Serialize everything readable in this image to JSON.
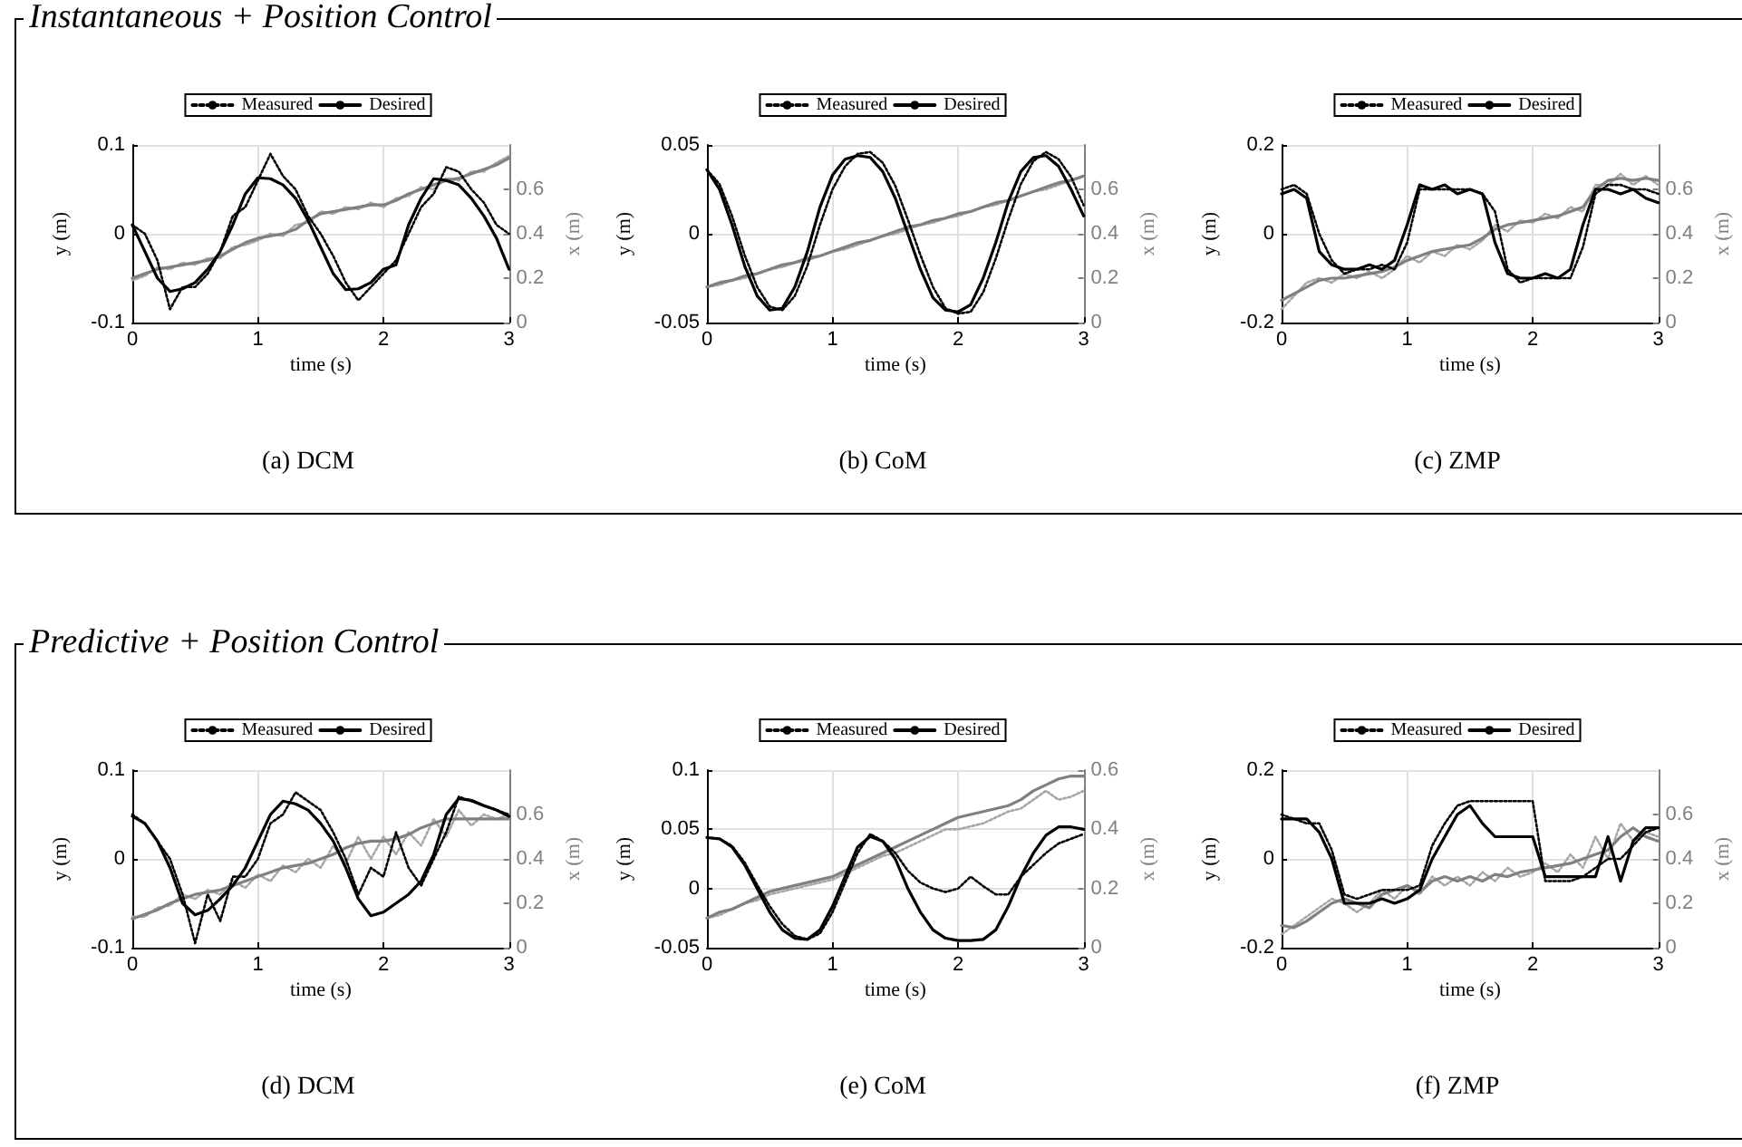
{
  "chart_data": [
    {
      "type": "line",
      "title": "(a) DCM",
      "annotations": [
        "Instantaneous + Position Control"
      ],
      "xlabel": "time (s)",
      "ylabel": "y (m)",
      "y2label": "x (m)",
      "xlim": [
        0,
        3
      ],
      "xticks": [
        0,
        1,
        2,
        3
      ],
      "ylim": [
        -0.1,
        0.1
      ],
      "yticks": [
        -0.1,
        0,
        0.1
      ],
      "y2lim": [
        0,
        0.8
      ],
      "y2ticks": [
        0,
        0.2,
        0.4,
        0.6
      ],
      "grid": true,
      "legend": "top",
      "marker": "none",
      "x": [
        0,
        0.1,
        0.2,
        0.3,
        0.4,
        0.5,
        0.6,
        0.7,
        0.8,
        0.9,
        1,
        1.1,
        1.2,
        1.3,
        1.4,
        1.5,
        1.6,
        1.7,
        1.8,
        1.9,
        2,
        2.1,
        2.2,
        2.3,
        2.4,
        2.5,
        2.6,
        2.7,
        2.8,
        2.9,
        3
      ],
      "series": [
        {
          "axis": "y2",
          "color": "#a6a6a6",
          "line_style": "dotted",
          "values": [
            0.19,
            0.21,
            0.25,
            0.24,
            0.27,
            0.26,
            0.29,
            0.29,
            0.34,
            0.35,
            0.37,
            0.4,
            0.39,
            0.44,
            0.45,
            0.5,
            0.49,
            0.52,
            0.51,
            0.54,
            0.52,
            0.56,
            0.57,
            0.61,
            0.6,
            0.65,
            0.64,
            0.68,
            0.68,
            0.72,
            0.75
          ]
        },
        {
          "axis": "y2",
          "color": "#808080",
          "line_style": "solid",
          "values": [
            0.2,
            0.22,
            0.24,
            0.25,
            0.26,
            0.27,
            0.28,
            0.3,
            0.33,
            0.36,
            0.38,
            0.39,
            0.4,
            0.42,
            0.46,
            0.49,
            0.5,
            0.51,
            0.52,
            0.53,
            0.53,
            0.55,
            0.58,
            0.6,
            0.62,
            0.64,
            0.65,
            0.67,
            0.69,
            0.71,
            0.74
          ]
        },
        {
          "name": "Measured",
          "color": "#000000",
          "line_style": "dotted",
          "values": [
            0.01,
            0.0,
            -0.03,
            -0.085,
            -0.06,
            -0.06,
            -0.045,
            -0.02,
            0.02,
            0.03,
            0.06,
            0.09,
            0.065,
            0.05,
            0.02,
            0.0,
            -0.025,
            -0.055,
            -0.075,
            -0.06,
            -0.045,
            -0.03,
            0.0,
            0.03,
            0.045,
            0.075,
            0.07,
            0.05,
            0.035,
            0.01,
            0.0
          ]
        },
        {
          "name": "Desired",
          "color": "#000000",
          "line_style": "solid",
          "values": [
            0.01,
            -0.02,
            -0.05,
            -0.065,
            -0.062,
            -0.055,
            -0.04,
            -0.02,
            0.01,
            0.045,
            0.063,
            0.062,
            0.055,
            0.04,
            0.015,
            -0.015,
            -0.045,
            -0.063,
            -0.062,
            -0.055,
            -0.04,
            -0.035,
            0.01,
            0.04,
            0.062,
            0.06,
            0.055,
            0.04,
            0.02,
            -0.005,
            -0.04
          ]
        }
      ]
    },
    {
      "type": "line",
      "title": "(b) CoM",
      "xlabel": "time (s)",
      "ylabel": "y (m)",
      "y2label": "x (m)",
      "xlim": [
        0,
        3
      ],
      "xticks": [
        0,
        1,
        2,
        3
      ],
      "ylim": [
        -0.05,
        0.05
      ],
      "yticks": [
        -0.05,
        0,
        0.05
      ],
      "y2lim": [
        0,
        0.8
      ],
      "y2ticks": [
        0,
        0.2,
        0.4,
        0.6
      ],
      "grid": true,
      "legend": "top",
      "marker": "none",
      "x": [
        0,
        0.1,
        0.2,
        0.3,
        0.4,
        0.5,
        0.6,
        0.7,
        0.8,
        0.9,
        1,
        1.1,
        1.2,
        1.3,
        1.4,
        1.5,
        1.6,
        1.7,
        1.8,
        1.9,
        2,
        2.1,
        2.2,
        2.3,
        2.4,
        2.5,
        2.6,
        2.7,
        2.8,
        2.9,
        3
      ],
      "series": [
        {
          "axis": "y2",
          "color": "#a6a6a6",
          "line_style": "dotted",
          "values": [
            0.16,
            0.17,
            0.19,
            0.2,
            0.22,
            0.24,
            0.25,
            0.27,
            0.28,
            0.3,
            0.32,
            0.33,
            0.35,
            0.37,
            0.39,
            0.4,
            0.42,
            0.44,
            0.45,
            0.47,
            0.48,
            0.5,
            0.52,
            0.53,
            0.55,
            0.57,
            0.59,
            0.6,
            0.62,
            0.64,
            0.66
          ]
        },
        {
          "axis": "y2",
          "color": "#808080",
          "line_style": "solid",
          "values": [
            0.16,
            0.18,
            0.19,
            0.21,
            0.22,
            0.24,
            0.26,
            0.27,
            0.29,
            0.3,
            0.32,
            0.34,
            0.36,
            0.37,
            0.39,
            0.41,
            0.43,
            0.44,
            0.46,
            0.47,
            0.49,
            0.5,
            0.52,
            0.54,
            0.55,
            0.57,
            0.59,
            0.61,
            0.63,
            0.64,
            0.66
          ]
        },
        {
          "name": "Measured",
          "color": "#000000",
          "line_style": "dotted",
          "values": [
            0.036,
            0.028,
            0.01,
            -0.012,
            -0.03,
            -0.041,
            -0.043,
            -0.035,
            -0.018,
            0.005,
            0.025,
            0.038,
            0.045,
            0.046,
            0.04,
            0.027,
            0.008,
            -0.012,
            -0.03,
            -0.042,
            -0.045,
            -0.044,
            -0.033,
            -0.014,
            0.008,
            0.028,
            0.041,
            0.046,
            0.042,
            0.032,
            0.016
          ]
        },
        {
          "name": "Desired",
          "color": "#000000",
          "line_style": "solid",
          "values": [
            0.036,
            0.025,
            0.005,
            -0.018,
            -0.035,
            -0.043,
            -0.042,
            -0.03,
            -0.01,
            0.015,
            0.033,
            0.042,
            0.044,
            0.043,
            0.035,
            0.02,
            0.0,
            -0.02,
            -0.036,
            -0.043,
            -0.044,
            -0.04,
            -0.025,
            -0.005,
            0.018,
            0.035,
            0.043,
            0.044,
            0.038,
            0.025,
            0.01
          ]
        }
      ]
    },
    {
      "type": "line",
      "title": "(c) ZMP",
      "xlabel": "time (s)",
      "ylabel": "y (m)",
      "y2label": "x (m)",
      "xlim": [
        0,
        3
      ],
      "xticks": [
        0,
        1,
        2,
        3
      ],
      "ylim": [
        -0.2,
        0.2
      ],
      "yticks": [
        -0.2,
        0,
        0.2
      ],
      "y2lim": [
        0,
        0.8
      ],
      "y2ticks": [
        0,
        0.2,
        0.4,
        0.6
      ],
      "grid": true,
      "legend": "top",
      "marker": "none",
      "x": [
        0,
        0.1,
        0.2,
        0.3,
        0.4,
        0.5,
        0.6,
        0.7,
        0.8,
        0.9,
        1,
        1.1,
        1.2,
        1.3,
        1.4,
        1.5,
        1.6,
        1.7,
        1.8,
        1.9,
        2,
        2.1,
        2.2,
        2.3,
        2.4,
        2.5,
        2.6,
        2.7,
        2.8,
        2.9,
        3
      ],
      "series": [
        {
          "axis": "y2",
          "color": "#a6a6a6",
          "line_style": "dotted",
          "values": [
            0.06,
            0.12,
            0.18,
            0.2,
            0.18,
            0.22,
            0.2,
            0.23,
            0.2,
            0.24,
            0.3,
            0.27,
            0.32,
            0.3,
            0.35,
            0.33,
            0.37,
            0.44,
            0.41,
            0.46,
            0.45,
            0.49,
            0.47,
            0.52,
            0.5,
            0.62,
            0.62,
            0.67,
            0.62,
            0.66,
            0.62
          ]
        },
        {
          "axis": "y2",
          "color": "#808080",
          "line_style": "solid",
          "values": [
            0.1,
            0.13,
            0.16,
            0.19,
            0.2,
            0.2,
            0.21,
            0.22,
            0.23,
            0.25,
            0.28,
            0.3,
            0.32,
            0.33,
            0.34,
            0.35,
            0.38,
            0.42,
            0.44,
            0.45,
            0.46,
            0.47,
            0.48,
            0.5,
            0.52,
            0.6,
            0.64,
            0.65,
            0.64,
            0.65,
            0.64
          ]
        },
        {
          "name": "Measured",
          "color": "#000000",
          "line_style": "dotted",
          "values": [
            0.1,
            0.11,
            0.09,
            0.0,
            -0.06,
            -0.09,
            -0.08,
            -0.08,
            -0.07,
            -0.08,
            -0.02,
            0.1,
            0.1,
            0.1,
            0.1,
            0.1,
            0.09,
            0.05,
            -0.08,
            -0.11,
            -0.1,
            -0.1,
            -0.1,
            -0.1,
            -0.03,
            0.09,
            0.11,
            0.11,
            0.1,
            0.1,
            0.09
          ]
        },
        {
          "name": "Desired",
          "color": "#000000",
          "line_style": "solid",
          "values": [
            0.09,
            0.1,
            0.08,
            -0.04,
            -0.07,
            -0.08,
            -0.08,
            -0.07,
            -0.08,
            -0.06,
            0.02,
            0.11,
            0.1,
            0.11,
            0.09,
            0.1,
            0.09,
            -0.02,
            -0.09,
            -0.1,
            -0.1,
            -0.09,
            -0.1,
            -0.08,
            0.02,
            0.1,
            0.1,
            0.09,
            0.1,
            0.08,
            0.07
          ]
        }
      ]
    },
    {
      "type": "line",
      "title": "(d) DCM",
      "annotations": [
        "Predictive + Position Control"
      ],
      "xlabel": "time (s)",
      "ylabel": "y (m)",
      "y2label": "x (m)",
      "xlim": [
        0,
        3
      ],
      "xticks": [
        0,
        1,
        2,
        3
      ],
      "ylim": [
        -0.1,
        0.1
      ],
      "yticks": [
        -0.1,
        0,
        0.1
      ],
      "y2lim": [
        0,
        0.8
      ],
      "y2ticks": [
        0,
        0.2,
        0.4,
        0.6
      ],
      "grid": true,
      "legend": "top",
      "marker": "none",
      "x": [
        0,
        0.1,
        0.2,
        0.3,
        0.4,
        0.5,
        0.6,
        0.7,
        0.8,
        0.9,
        1,
        1.1,
        1.2,
        1.3,
        1.4,
        1.5,
        1.6,
        1.7,
        1.8,
        1.9,
        2,
        2.1,
        2.2,
        2.3,
        2.4,
        2.5,
        2.6,
        2.7,
        2.8,
        2.9,
        3
      ],
      "series": [
        {
          "axis": "y2",
          "color": "#a6a6a6",
          "line_style": "dotted",
          "values": [
            0.14,
            0.14,
            0.18,
            0.19,
            0.24,
            0.22,
            0.26,
            0.24,
            0.3,
            0.27,
            0.33,
            0.3,
            0.37,
            0.34,
            0.4,
            0.36,
            0.46,
            0.38,
            0.5,
            0.4,
            0.5,
            0.42,
            0.52,
            0.46,
            0.58,
            0.5,
            0.62,
            0.55,
            0.6,
            0.58,
            0.6
          ]
        },
        {
          "axis": "y2",
          "color": "#808080",
          "line_style": "solid",
          "values": [
            0.13,
            0.15,
            0.17,
            0.2,
            0.22,
            0.24,
            0.25,
            0.26,
            0.28,
            0.3,
            0.32,
            0.34,
            0.36,
            0.37,
            0.38,
            0.4,
            0.42,
            0.45,
            0.47,
            0.48,
            0.48,
            0.49,
            0.51,
            0.54,
            0.56,
            0.58,
            0.58,
            0.58,
            0.58,
            0.58,
            0.58
          ]
        },
        {
          "name": "Measured",
          "color": "#000000",
          "line_style": "dotted",
          "values": [
            0.05,
            0.04,
            0.02,
            0.0,
            -0.04,
            -0.095,
            -0.04,
            -0.07,
            -0.02,
            -0.02,
            0.0,
            0.04,
            0.05,
            0.075,
            0.065,
            0.055,
            0.03,
            0.0,
            -0.04,
            -0.01,
            -0.02,
            0.03,
            -0.01,
            -0.03,
            0.0,
            0.03,
            0.07,
            0.065,
            0.06,
            0.055,
            0.05
          ]
        },
        {
          "name": "Desired",
          "color": "#000000",
          "line_style": "solid",
          "values": [
            0.048,
            0.04,
            0.02,
            -0.01,
            -0.05,
            -0.063,
            -0.058,
            -0.045,
            -0.03,
            -0.01,
            0.02,
            0.05,
            0.065,
            0.062,
            0.055,
            0.04,
            0.02,
            -0.01,
            -0.045,
            -0.064,
            -0.06,
            -0.05,
            -0.04,
            -0.025,
            0.005,
            0.05,
            0.068,
            0.066,
            0.06,
            0.055,
            0.048
          ]
        }
      ]
    },
    {
      "type": "line",
      "title": "(e) CoM",
      "xlabel": "time (s)",
      "ylabel": "y (m)",
      "y2label": "x (m)",
      "xlim": [
        0,
        3
      ],
      "xticks": [
        0,
        1,
        2,
        3
      ],
      "ylim": [
        -0.05,
        0.1
      ],
      "yticks": [
        -0.05,
        0,
        0.05,
        0.1
      ],
      "y2lim": [
        0,
        0.6
      ],
      "y2ticks": [
        0,
        0.2,
        0.4,
        0.6
      ],
      "grid": true,
      "legend": "top",
      "marker": "none",
      "x": [
        0,
        0.1,
        0.2,
        0.3,
        0.4,
        0.5,
        0.6,
        0.7,
        0.8,
        0.9,
        1,
        1.1,
        1.2,
        1.3,
        1.4,
        1.5,
        1.6,
        1.7,
        1.8,
        1.9,
        2,
        2.1,
        2.2,
        2.3,
        2.4,
        2.5,
        2.6,
        2.7,
        2.8,
        2.9,
        3
      ],
      "series": [
        {
          "axis": "y2",
          "color": "#a6a6a6",
          "line_style": "dotted",
          "values": [
            0.1,
            0.11,
            0.13,
            0.15,
            0.16,
            0.18,
            0.19,
            0.2,
            0.21,
            0.22,
            0.23,
            0.25,
            0.27,
            0.29,
            0.31,
            0.32,
            0.34,
            0.36,
            0.38,
            0.4,
            0.4,
            0.41,
            0.42,
            0.44,
            0.46,
            0.47,
            0.5,
            0.53,
            0.5,
            0.51,
            0.53
          ]
        },
        {
          "axis": "y2",
          "color": "#808080",
          "line_style": "solid",
          "values": [
            0.1,
            0.12,
            0.13,
            0.15,
            0.17,
            0.19,
            0.2,
            0.21,
            0.22,
            0.23,
            0.24,
            0.26,
            0.28,
            0.3,
            0.32,
            0.34,
            0.36,
            0.38,
            0.4,
            0.42,
            0.44,
            0.45,
            0.46,
            0.47,
            0.48,
            0.5,
            0.53,
            0.55,
            0.57,
            0.58,
            0.58
          ]
        },
        {
          "name": "Measured",
          "color": "#000000",
          "line_style": "dotted",
          "values": [
            0.043,
            0.042,
            0.036,
            0.022,
            0.003,
            -0.015,
            -0.03,
            -0.04,
            -0.043,
            -0.038,
            -0.02,
            0.005,
            0.03,
            0.046,
            0.04,
            0.03,
            0.015,
            0.005,
            0.0,
            -0.003,
            0.0,
            0.01,
            0.002,
            -0.005,
            -0.005,
            0.01,
            0.02,
            0.03,
            0.038,
            0.042,
            0.046
          ]
        },
        {
          "name": "Desired",
          "color": "#000000",
          "line_style": "solid",
          "values": [
            0.043,
            0.042,
            0.035,
            0.02,
            0.0,
            -0.02,
            -0.035,
            -0.042,
            -0.043,
            -0.035,
            -0.015,
            0.01,
            0.035,
            0.044,
            0.04,
            0.025,
            0.0,
            -0.02,
            -0.035,
            -0.042,
            -0.044,
            -0.044,
            -0.043,
            -0.035,
            -0.015,
            0.01,
            0.03,
            0.045,
            0.052,
            0.052,
            0.05
          ]
        }
      ]
    },
    {
      "type": "line",
      "title": "(f) ZMP",
      "xlabel": "time (s)",
      "ylabel": "y (m)",
      "y2label": "x (m)",
      "xlim": [
        0,
        3
      ],
      "xticks": [
        0,
        1,
        2,
        3
      ],
      "ylim": [
        -0.2,
        0.2
      ],
      "yticks": [
        -0.2,
        0,
        0.2
      ],
      "y2lim": [
        0,
        0.8
      ],
      "y2ticks": [
        0,
        0.2,
        0.4,
        0.6
      ],
      "grid": true,
      "legend": "top",
      "marker": "none",
      "x": [
        0,
        0.1,
        0.2,
        0.3,
        0.4,
        0.5,
        0.6,
        0.7,
        0.8,
        0.9,
        1,
        1.1,
        1.2,
        1.3,
        1.4,
        1.5,
        1.6,
        1.7,
        1.8,
        1.9,
        2,
        2.1,
        2.2,
        2.3,
        2.4,
        2.5,
        2.6,
        2.7,
        2.8,
        2.9,
        3
      ],
      "series": [
        {
          "axis": "y2",
          "color": "#a6a6a6",
          "line_style": "dotted",
          "values": [
            0.06,
            0.1,
            0.14,
            0.18,
            0.22,
            0.2,
            0.16,
            0.2,
            0.26,
            0.22,
            0.28,
            0.24,
            0.32,
            0.28,
            0.32,
            0.28,
            0.34,
            0.3,
            0.36,
            0.32,
            0.34,
            0.38,
            0.34,
            0.42,
            0.36,
            0.5,
            0.4,
            0.56,
            0.48,
            0.52,
            0.5
          ]
        },
        {
          "axis": "y2",
          "color": "#808080",
          "line_style": "solid",
          "values": [
            0.1,
            0.09,
            0.12,
            0.16,
            0.2,
            0.22,
            0.2,
            0.18,
            0.24,
            0.26,
            0.28,
            0.25,
            0.3,
            0.32,
            0.3,
            0.32,
            0.3,
            0.33,
            0.32,
            0.34,
            0.35,
            0.36,
            0.37,
            0.38,
            0.4,
            0.42,
            0.44,
            0.5,
            0.54,
            0.5,
            0.48
          ]
        },
        {
          "name": "Measured",
          "color": "#000000",
          "line_style": "dotted",
          "values": [
            0.1,
            0.09,
            0.08,
            0.08,
            0.02,
            -0.08,
            -0.09,
            -0.08,
            -0.07,
            -0.07,
            -0.07,
            -0.06,
            0.03,
            0.08,
            0.12,
            0.13,
            0.13,
            0.13,
            0.13,
            0.13,
            0.13,
            -0.05,
            -0.05,
            -0.05,
            -0.04,
            -0.02,
            0.0,
            0.0,
            0.03,
            0.06,
            0.07
          ]
        },
        {
          "name": "Desired",
          "color": "#000000",
          "line_style": "solid",
          "values": [
            0.09,
            0.09,
            0.09,
            0.06,
            0.0,
            -0.1,
            -0.1,
            -0.1,
            -0.09,
            -0.1,
            -0.09,
            -0.07,
            0.0,
            0.05,
            0.1,
            0.12,
            0.08,
            0.05,
            0.05,
            0.05,
            0.05,
            -0.04,
            -0.04,
            -0.04,
            -0.04,
            -0.04,
            0.05,
            -0.05,
            0.04,
            0.07,
            0.07
          ]
        }
      ]
    }
  ]
}
